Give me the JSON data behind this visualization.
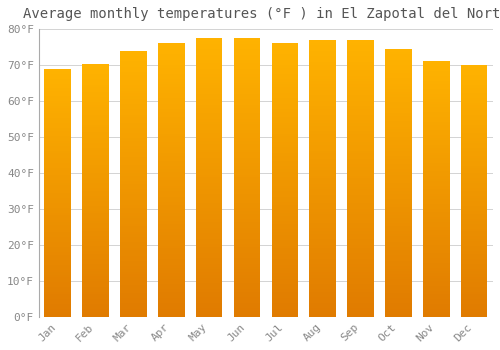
{
  "title": "Average monthly temperatures (°F ) in El Zapotal del Norte",
  "months": [
    "Jan",
    "Feb",
    "Mar",
    "Apr",
    "May",
    "Jun",
    "Jul",
    "Aug",
    "Sep",
    "Oct",
    "Nov",
    "Dec"
  ],
  "values": [
    69.0,
    70.2,
    74.0,
    76.0,
    77.5,
    77.5,
    76.0,
    77.0,
    77.0,
    74.5,
    71.2,
    70.0
  ],
  "bar_color_bright": "#FFB300",
  "bar_color_dark": "#E07B00",
  "background_color": "#FFFFFF",
  "grid_color": "#CCCCCC",
  "ylim": [
    0,
    80
  ],
  "yticks": [
    0,
    10,
    20,
    30,
    40,
    50,
    60,
    70,
    80
  ],
  "title_fontsize": 10,
  "tick_fontsize": 8,
  "title_color": "#555555",
  "tick_color": "#888888",
  "bar_width": 0.7
}
